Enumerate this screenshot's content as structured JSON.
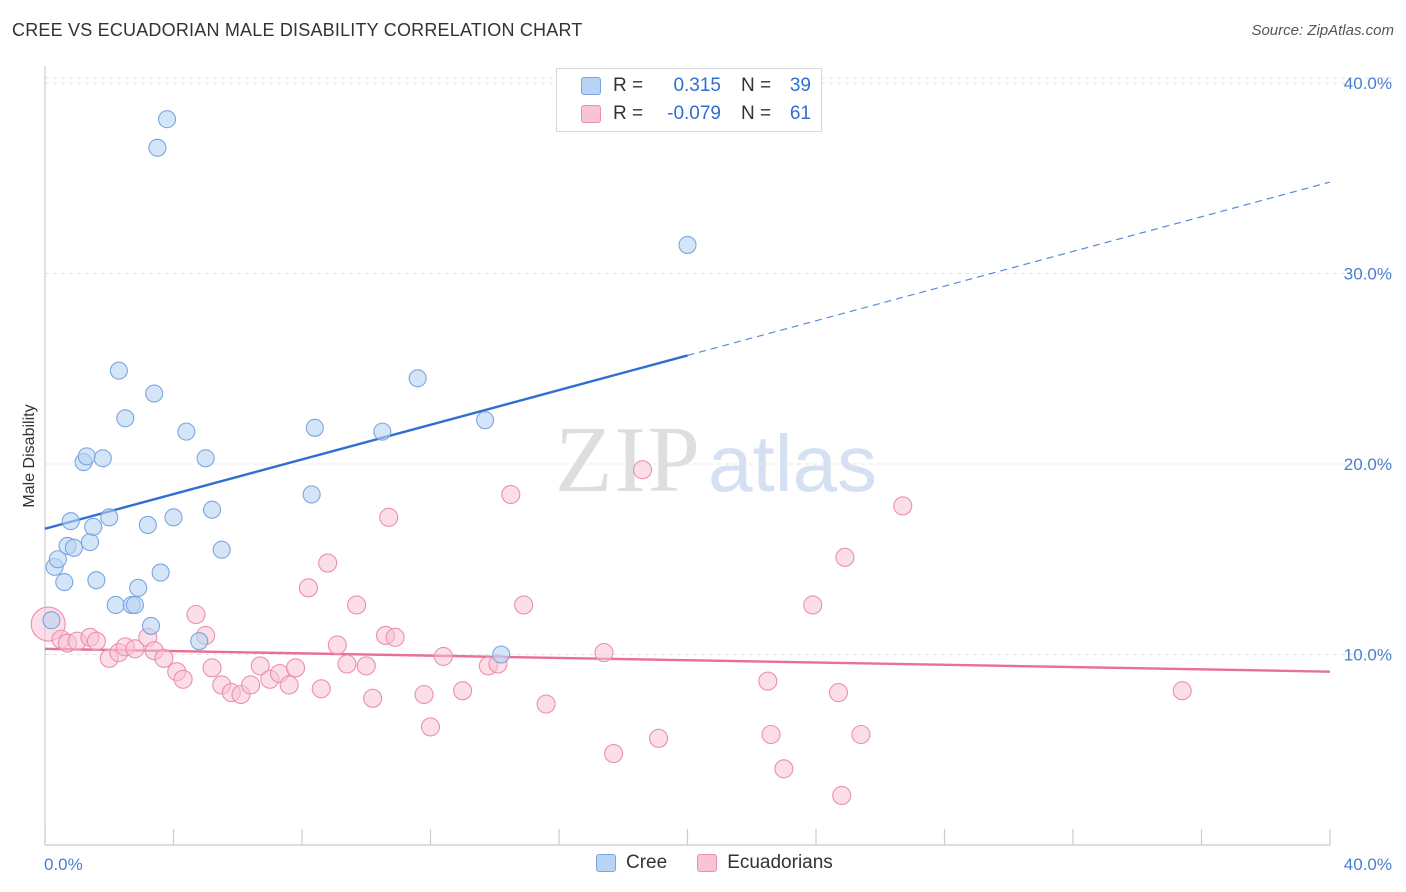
{
  "header": {
    "title": "CREE VS ECUADORIAN MALE DISABILITY CORRELATION CHART",
    "source": "Source: ZipAtlas.com"
  },
  "watermark": {
    "part1": "ZIP",
    "part2": "atlas"
  },
  "legend": {
    "rows": [
      {
        "r_label": "R =",
        "r_value": "0.315",
        "n_label": "N =",
        "n_value": "39"
      },
      {
        "r_label": "R =",
        "r_value": "-0.079",
        "n_label": "N =",
        "n_value": "61"
      }
    ]
  },
  "bottom_legend": {
    "cree": "Cree",
    "ecuadorians": "Ecuadorians"
  },
  "colors": {
    "cree_fill": "#b9d3f4",
    "cree_stroke": "#7aa6e0",
    "cree_line": "#2f6fd1",
    "ecu_fill": "#f8c3d3",
    "ecu_stroke": "#ec8fae",
    "ecu_line": "#e86f96",
    "tick_label": "#4a7fd0",
    "grid": "#e3e3e3"
  },
  "chart_data": {
    "type": "scatter",
    "title": "CREE VS ECUADORIAN MALE DISABILITY CORRELATION CHART",
    "ylabel": "Male Disability",
    "xlabel": "",
    "xlim": [
      0,
      40
    ],
    "ylim": [
      0,
      40
    ],
    "x_tick_labels": [
      {
        "value": 0,
        "label": "0.0%"
      },
      {
        "value": 40,
        "label": "40.0%"
      }
    ],
    "y_tick_labels": [
      {
        "value": 10,
        "label": "10.0%"
      },
      {
        "value": 20,
        "label": "20.0%"
      },
      {
        "value": 30,
        "label": "30.0%"
      },
      {
        "value": 40,
        "label": "40.0%"
      }
    ],
    "grid": true,
    "legend_position": "top-center",
    "series": [
      {
        "name": "Cree",
        "r": 0.315,
        "n": 39,
        "trend": {
          "x0": 0,
          "y0": 16.6,
          "x1": 20,
          "y1": 25.7,
          "dashed_to_x": 40,
          "dashed_to_y": 34.8
        },
        "points": [
          {
            "x": 0.2,
            "y": 11.8
          },
          {
            "x": 0.3,
            "y": 14.6
          },
          {
            "x": 0.4,
            "y": 15.0
          },
          {
            "x": 0.6,
            "y": 13.8
          },
          {
            "x": 0.7,
            "y": 15.7
          },
          {
            "x": 0.8,
            "y": 17.0
          },
          {
            "x": 0.9,
            "y": 15.6
          },
          {
            "x": 1.2,
            "y": 20.1
          },
          {
            "x": 1.3,
            "y": 20.4
          },
          {
            "x": 1.4,
            "y": 15.9
          },
          {
            "x": 1.5,
            "y": 16.7
          },
          {
            "x": 1.6,
            "y": 13.9
          },
          {
            "x": 1.8,
            "y": 20.3
          },
          {
            "x": 2.0,
            "y": 17.2
          },
          {
            "x": 2.2,
            "y": 12.6
          },
          {
            "x": 2.3,
            "y": 24.9
          },
          {
            "x": 2.5,
            "y": 22.4
          },
          {
            "x": 2.7,
            "y": 12.6
          },
          {
            "x": 2.8,
            "y": 12.6
          },
          {
            "x": 2.9,
            "y": 13.5
          },
          {
            "x": 3.2,
            "y": 16.8
          },
          {
            "x": 3.3,
            "y": 11.5
          },
          {
            "x": 3.4,
            "y": 23.7
          },
          {
            "x": 3.5,
            "y": 36.6
          },
          {
            "x": 3.6,
            "y": 14.3
          },
          {
            "x": 3.8,
            "y": 38.1
          },
          {
            "x": 4.0,
            "y": 17.2
          },
          {
            "x": 4.4,
            "y": 21.7
          },
          {
            "x": 4.8,
            "y": 10.7
          },
          {
            "x": 5.0,
            "y": 20.3
          },
          {
            "x": 5.2,
            "y": 17.6
          },
          {
            "x": 5.5,
            "y": 15.5
          },
          {
            "x": 8.3,
            "y": 18.4
          },
          {
            "x": 8.4,
            "y": 21.9
          },
          {
            "x": 10.5,
            "y": 21.7
          },
          {
            "x": 11.6,
            "y": 24.5
          },
          {
            "x": 13.7,
            "y": 22.3
          },
          {
            "x": 14.2,
            "y": 10.0
          },
          {
            "x": 20.0,
            "y": 31.5
          }
        ]
      },
      {
        "name": "Ecuadorians",
        "r": -0.079,
        "n": 61,
        "trend": {
          "x0": 0,
          "y0": 10.3,
          "x1": 40,
          "y1": 9.1
        },
        "points": [
          {
            "x": 0.1,
            "y": 11.6
          },
          {
            "x": 0.5,
            "y": 10.8
          },
          {
            "x": 0.7,
            "y": 10.6
          },
          {
            "x": 1.0,
            "y": 10.7
          },
          {
            "x": 1.4,
            "y": 10.9
          },
          {
            "x": 1.6,
            "y": 10.7
          },
          {
            "x": 2.0,
            "y": 9.8
          },
          {
            "x": 2.3,
            "y": 10.1
          },
          {
            "x": 2.5,
            "y": 10.4
          },
          {
            "x": 2.8,
            "y": 10.3
          },
          {
            "x": 3.2,
            "y": 10.9
          },
          {
            "x": 3.4,
            "y": 10.2
          },
          {
            "x": 3.7,
            "y": 9.8
          },
          {
            "x": 4.1,
            "y": 9.1
          },
          {
            "x": 4.3,
            "y": 8.7
          },
          {
            "x": 4.7,
            "y": 12.1
          },
          {
            "x": 5.0,
            "y": 11.0
          },
          {
            "x": 5.2,
            "y": 9.3
          },
          {
            "x": 5.5,
            "y": 8.4
          },
          {
            "x": 5.8,
            "y": 8.0
          },
          {
            "x": 6.1,
            "y": 7.9
          },
          {
            "x": 6.4,
            "y": 8.4
          },
          {
            "x": 6.7,
            "y": 9.4
          },
          {
            "x": 7.0,
            "y": 8.7
          },
          {
            "x": 7.3,
            "y": 9.0
          },
          {
            "x": 7.6,
            "y": 8.4
          },
          {
            "x": 7.8,
            "y": 9.3
          },
          {
            "x": 8.2,
            "y": 13.5
          },
          {
            "x": 8.6,
            "y": 8.2
          },
          {
            "x": 8.8,
            "y": 14.8
          },
          {
            "x": 9.1,
            "y": 10.5
          },
          {
            "x": 9.4,
            "y": 9.5
          },
          {
            "x": 9.7,
            "y": 12.6
          },
          {
            "x": 10.0,
            "y": 9.4
          },
          {
            "x": 10.2,
            "y": 7.7
          },
          {
            "x": 10.6,
            "y": 11.0
          },
          {
            "x": 10.7,
            "y": 17.2
          },
          {
            "x": 10.9,
            "y": 10.9
          },
          {
            "x": 11.8,
            "y": 7.9
          },
          {
            "x": 12.0,
            "y": 6.2
          },
          {
            "x": 12.4,
            "y": 9.9
          },
          {
            "x": 13.0,
            "y": 8.1
          },
          {
            "x": 13.8,
            "y": 9.4
          },
          {
            "x": 14.1,
            "y": 9.5
          },
          {
            "x": 14.5,
            "y": 18.4
          },
          {
            "x": 14.9,
            "y": 12.6
          },
          {
            "x": 15.6,
            "y": 7.4
          },
          {
            "x": 17.4,
            "y": 10.1
          },
          {
            "x": 17.7,
            "y": 4.8
          },
          {
            "x": 18.6,
            "y": 19.7
          },
          {
            "x": 19.1,
            "y": 5.6
          },
          {
            "x": 22.5,
            "y": 8.6
          },
          {
            "x": 22.6,
            "y": 5.8
          },
          {
            "x": 23.0,
            "y": 4.0
          },
          {
            "x": 23.9,
            "y": 12.6
          },
          {
            "x": 24.7,
            "y": 8.0
          },
          {
            "x": 24.8,
            "y": 2.6
          },
          {
            "x": 24.9,
            "y": 15.1
          },
          {
            "x": 25.4,
            "y": 5.8
          },
          {
            "x": 26.7,
            "y": 17.8
          },
          {
            "x": 35.4,
            "y": 8.1
          }
        ]
      }
    ]
  }
}
